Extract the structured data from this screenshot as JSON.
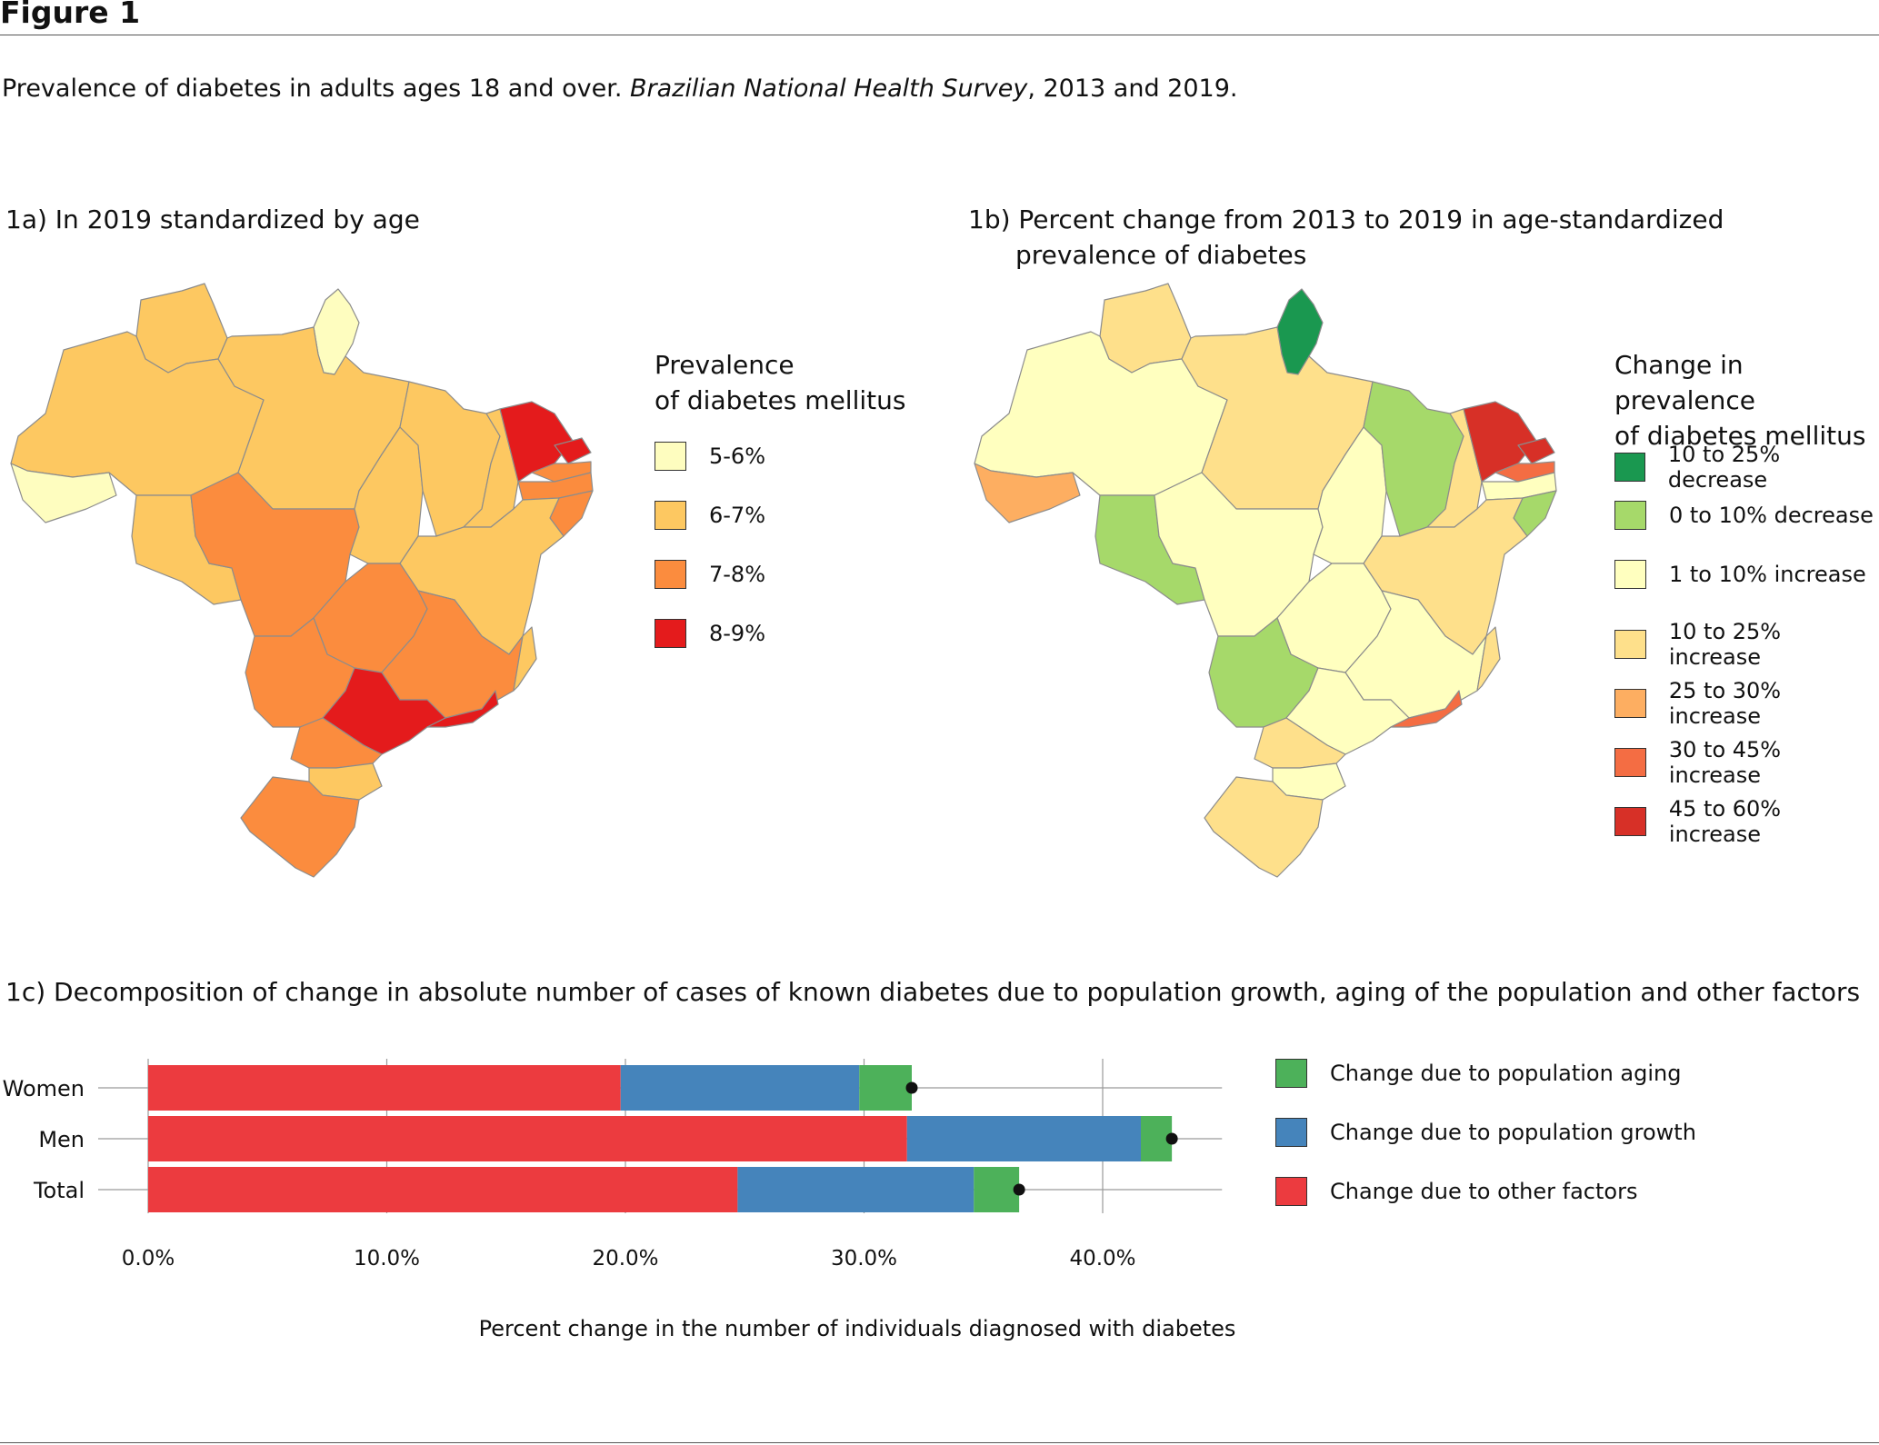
{
  "figure": {
    "title": "Figure 1",
    "caption_pre": "Prevalence of diabetes in adults ages 18 and over. ",
    "caption_italic": "Brazilian National Health Survey",
    "caption_post": ", 2013 and 2019."
  },
  "panel_a": {
    "title": "1a) In 2019 standardized by age",
    "legend_title_line1": "Prevalence",
    "legend_title_line2": "of diabetes mellitus",
    "legend": [
      {
        "label": "5-6%",
        "color": "#fefdbf"
      },
      {
        "label": "6-7%",
        "color": "#fdc861"
      },
      {
        "label": "7-8%",
        "color": "#fb8c3e"
      },
      {
        "label": "8-9%",
        "color": "#e41b1c"
      }
    ]
  },
  "panel_b": {
    "title_line1": "1b) Percent change from 2013 to 2019 in age-standardized",
    "title_line2": "prevalence of diabetes",
    "legend_title_line1": "Change in prevalence",
    "legend_title_line2": "of diabetes mellitus",
    "legend": [
      {
        "label": "10 to 25% decrease",
        "color": "#1a9850"
      },
      {
        "label": "0 to 10% decrease",
        "color": "#a6d96a"
      },
      {
        "label": "1 to 10% increase",
        "color": "#ffffbf"
      },
      {
        "label": "10 to 25% increase",
        "color": "#fee08b"
      },
      {
        "label": "25 to 30% increase",
        "color": "#fdae61"
      },
      {
        "label": "30 to 45% increase",
        "color": "#f46d43"
      },
      {
        "label": "45 to 60% increase",
        "color": "#d73027"
      }
    ]
  },
  "panel_c": {
    "title": "1c) Decomposition of change in absolute number of cases of known diabetes due to population growth, aging of the population and other factors",
    "legend": [
      {
        "label": "Change due to population aging",
        "color": "#4db15a"
      },
      {
        "label": "Change due to population growth",
        "color": "#4584bb"
      },
      {
        "label": "Change due to other factors",
        "color": "#ec3b3f"
      }
    ]
  },
  "chart_data": {
    "type": "bar",
    "orientation": "horizontal",
    "stacked": true,
    "categories": [
      "Women",
      "Men",
      "Total"
    ],
    "series": [
      {
        "name": "Change due to other factors",
        "values": [
          19.8,
          31.8,
          24.7
        ]
      },
      {
        "name": "Change due to population growth",
        "values": [
          10.0,
          9.8,
          9.9
        ]
      },
      {
        "name": "Change due to population aging",
        "values": [
          2.2,
          1.3,
          1.9
        ]
      }
    ],
    "totals": [
      32.0,
      42.9,
      36.5
    ],
    "x_ticks": [
      "0.0%",
      "10.0%",
      "20.0%",
      "30.0%",
      "40.0%"
    ],
    "xlim": [
      0,
      45
    ],
    "xlabel": "Percent change in the number of individuals diagnosed with diabetes",
    "grid": true
  }
}
